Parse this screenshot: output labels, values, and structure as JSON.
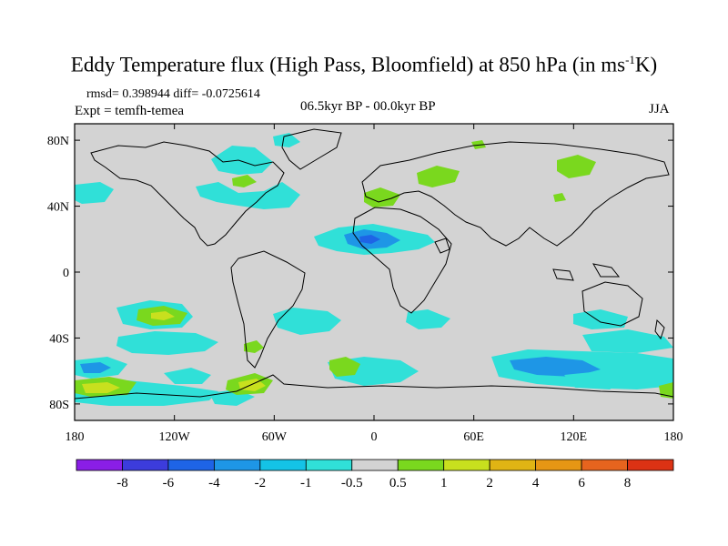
{
  "title_main": "Eddy Temperature flux (High Pass, Bloomfield) at 850 hPa (in ms",
  "title_sup": "-1",
  "title_end": "K)",
  "stats": {
    "rmsd_line": "rmsd= 0.398944 diff= -0.0725614",
    "expt": "Expt = temfh-temea",
    "period": "06.5kyr BP - 00.0kyr BP",
    "season": "JJA"
  },
  "axes": {
    "lon_ticks": [
      "180",
      "120W",
      "60W",
      "0",
      "60E",
      "120E",
      "180"
    ],
    "lat_ticks": [
      "80N",
      "40N",
      "0",
      "40S",
      "80S"
    ]
  },
  "colorbar": {
    "labels": [
      "-8",
      "-6",
      "-4",
      "-2",
      "-1",
      "-0.5",
      "0.5",
      "1",
      "2",
      "4",
      "6",
      "8"
    ],
    "colors": [
      "#8a1ee6",
      "#3c3cdc",
      "#1e64e6",
      "#1e96e6",
      "#14c3e6",
      "#30e0d8",
      "#d3d3d3",
      "#7ad81e",
      "#c8e01e",
      "#e0b414",
      "#e69614",
      "#e6641e",
      "#dc3214"
    ]
  },
  "field_colors": {
    "background": "#d3d3d3",
    "land_outline": "#000000"
  }
}
